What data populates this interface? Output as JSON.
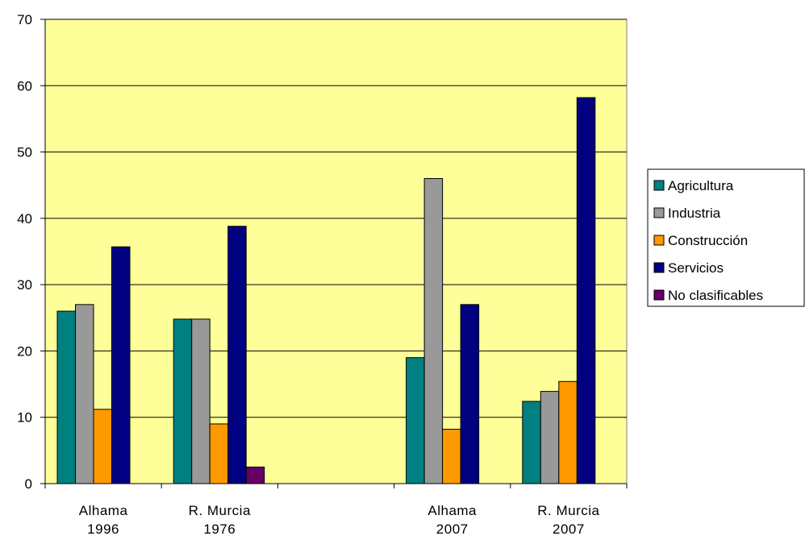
{
  "chart_data": {
    "type": "bar",
    "title": "",
    "xlabel": "",
    "ylabel": "",
    "ylim": [
      0,
      70
    ],
    "yticks": [
      0,
      10,
      20,
      30,
      40,
      50,
      60,
      70
    ],
    "grid": true,
    "legend_position": "right",
    "plot_background": "#FFFF99",
    "categories": [
      [
        "Alhama",
        "1996"
      ],
      [
        "R. Murcia",
        "1976"
      ],
      [
        "",
        ""
      ],
      [
        "Alhama",
        "2007"
      ],
      [
        "R. Murcia",
        "2007"
      ]
    ],
    "series": [
      {
        "name": "Agricultura",
        "color": "#008080",
        "values": [
          26,
          24.8,
          null,
          19,
          12.4
        ]
      },
      {
        "name": "Industria",
        "color": "#999999",
        "values": [
          27,
          24.8,
          null,
          46,
          13.9
        ]
      },
      {
        "name": "Construcción",
        "color": "#FF9900",
        "values": [
          11.2,
          9,
          null,
          8.2,
          15.4
        ]
      },
      {
        "name": "Servicios",
        "color": "#000080",
        "values": [
          35.7,
          38.8,
          null,
          27,
          58.2
        ]
      },
      {
        "name": "No clasificables",
        "color": "#660066",
        "values": [
          null,
          2.5,
          null,
          null,
          null
        ]
      }
    ]
  }
}
